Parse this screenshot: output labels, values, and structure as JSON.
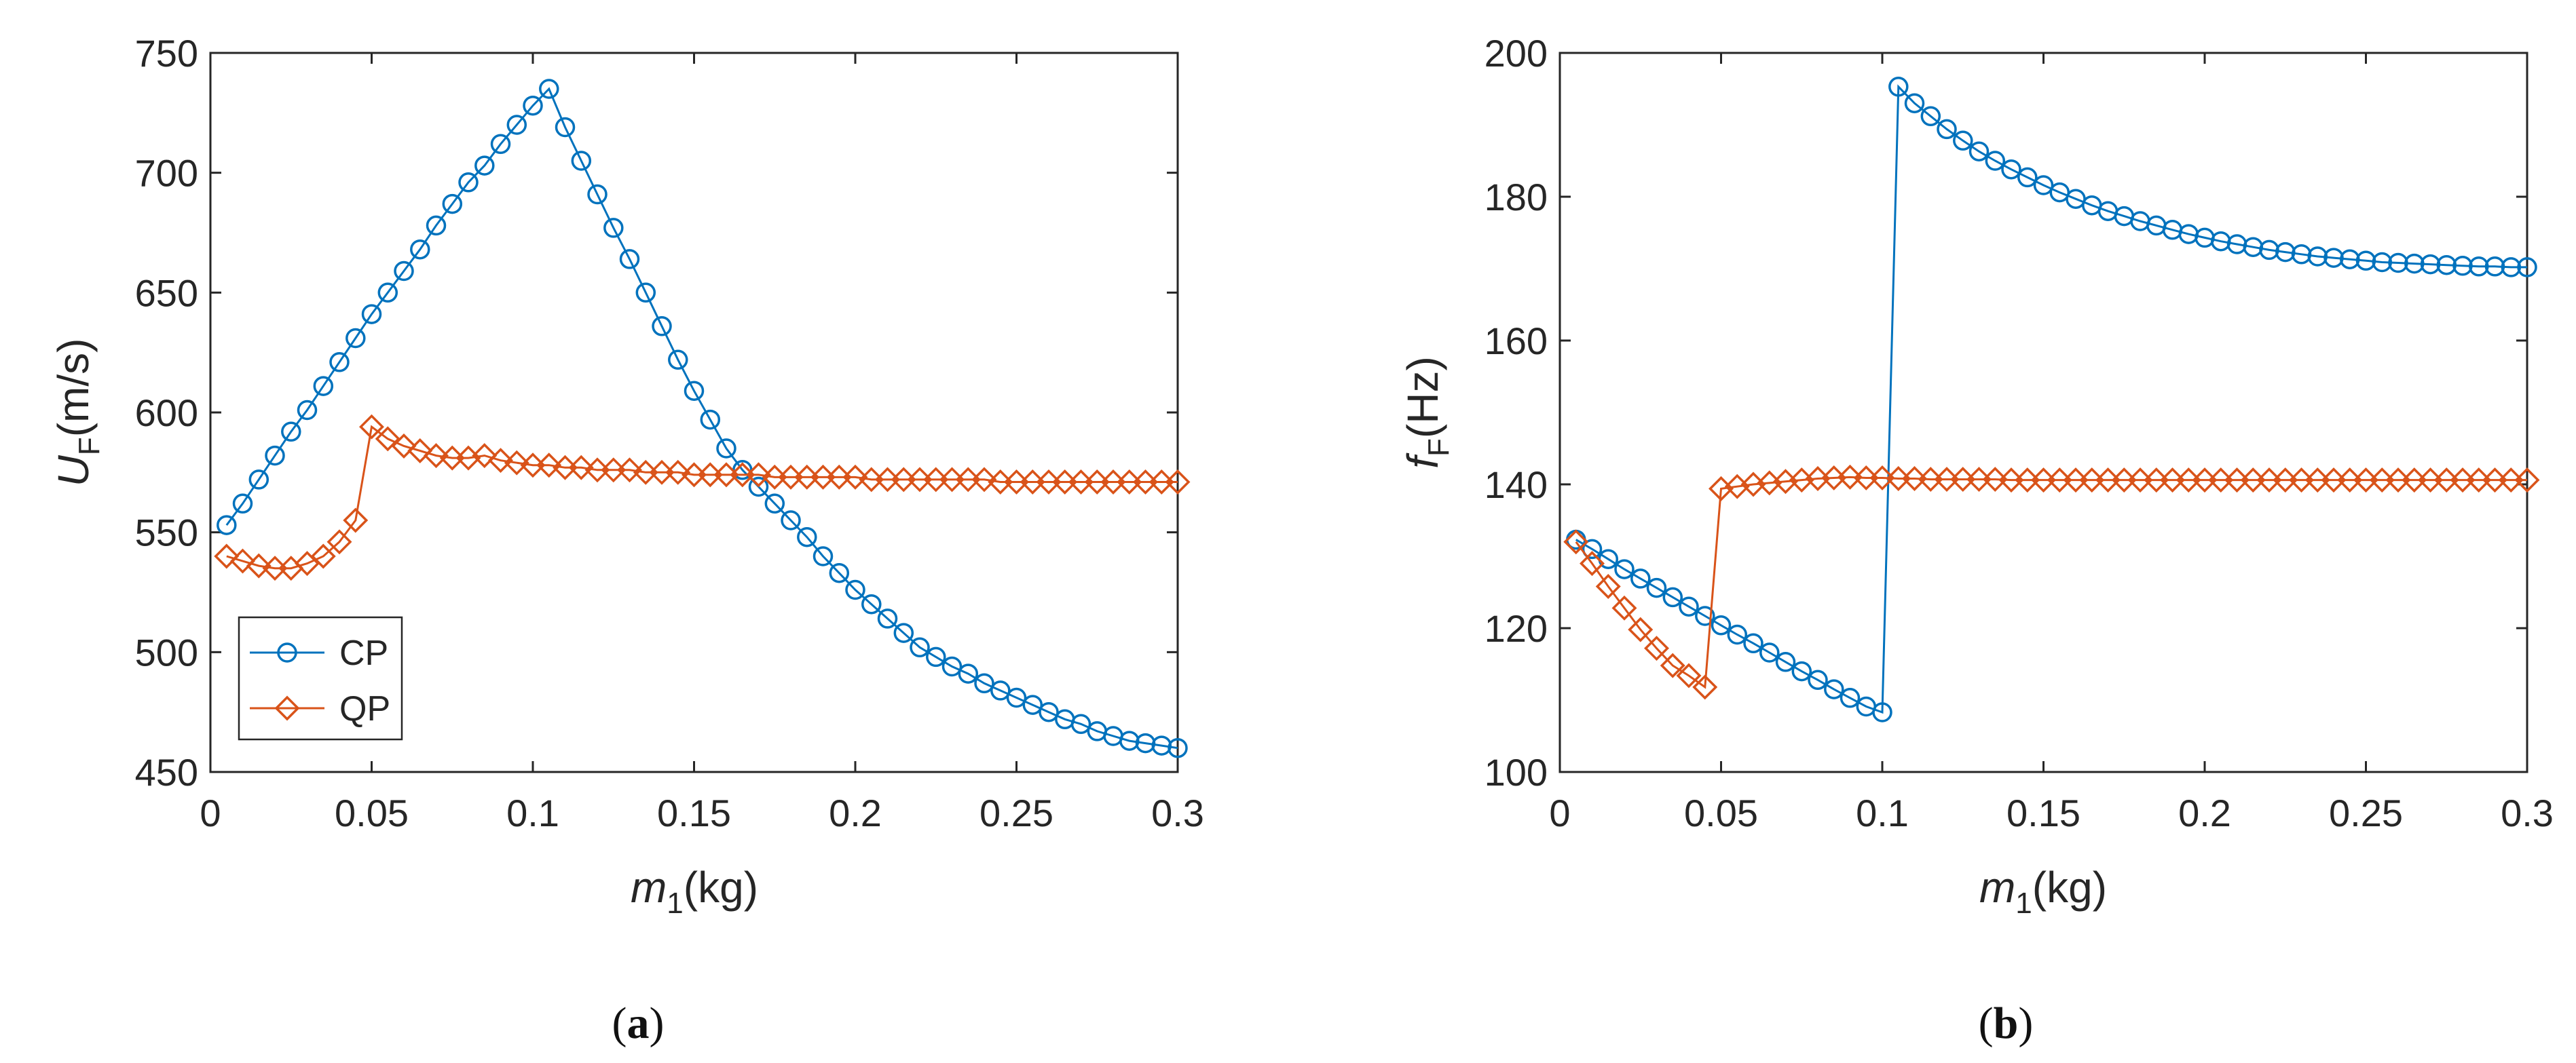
{
  "colors": {
    "cp": "#0072BD",
    "qp": "#D95319",
    "axis": "#262626"
  },
  "panels": [
    {
      "caption": {
        "open": "(",
        "letter": "a",
        "close": ")"
      },
      "ylabel": {
        "symbol": "U",
        "sub": "F",
        "unit": "(m/s)"
      },
      "xlabel": {
        "symbol": "m",
        "sub": "1",
        "unit": "(kg)"
      }
    },
    {
      "caption": {
        "open": "(",
        "letter": "b",
        "close": ")"
      },
      "ylabel": {
        "symbol": "f",
        "sub": "F",
        "unit": "(Hz)"
      },
      "xlabel": {
        "symbol": "m",
        "sub": "1",
        "unit": "(kg)"
      }
    }
  ],
  "legend": {
    "entries": [
      "CP",
      "QP"
    ]
  },
  "chart_data": [
    {
      "type": "line",
      "title": "(a)",
      "xlabel": "m1 (kg)",
      "ylabel": "UF (m/s)",
      "xlim": [
        0,
        0.3
      ],
      "ylim": [
        450,
        750
      ],
      "xticks": [
        0,
        0.05,
        0.1,
        0.15,
        0.2,
        0.25,
        0.3
      ],
      "xtick_labels": [
        "0",
        "0.05",
        "0.1",
        "0.15",
        "0.2",
        "0.25",
        "0.3"
      ],
      "yticks": [
        450,
        500,
        550,
        600,
        650,
        700,
        750
      ],
      "ytick_labels": [
        "450",
        "500",
        "550",
        "600",
        "650",
        "700",
        "750"
      ],
      "legend": "bottom-left",
      "series": [
        {
          "name": "CP",
          "marker": "circle",
          "x": [
            0.005,
            0.01,
            0.015,
            0.02,
            0.025,
            0.03,
            0.035,
            0.04,
            0.045,
            0.05,
            0.055,
            0.06,
            0.065,
            0.07,
            0.075,
            0.08,
            0.085,
            0.09,
            0.095,
            0.1,
            0.105,
            0.11,
            0.115,
            0.12,
            0.125,
            0.13,
            0.135,
            0.14,
            0.145,
            0.15,
            0.155,
            0.16,
            0.165,
            0.17,
            0.175,
            0.18,
            0.185,
            0.19,
            0.195,
            0.2,
            0.205,
            0.21,
            0.215,
            0.22,
            0.225,
            0.23,
            0.235,
            0.24,
            0.245,
            0.25,
            0.255,
            0.26,
            0.265,
            0.27,
            0.275,
            0.28,
            0.285,
            0.29,
            0.295,
            0.3
          ],
          "y": [
            553,
            562,
            572,
            582,
            592,
            601,
            611,
            621,
            631,
            641,
            650,
            659,
            668,
            678,
            687,
            696,
            703,
            712,
            720,
            728,
            735,
            719,
            705,
            691,
            677,
            664,
            650,
            636,
            622,
            609,
            597,
            585,
            576,
            569,
            562,
            555,
            548,
            540,
            533,
            526,
            520,
            514,
            508,
            502,
            498,
            494,
            491,
            487,
            484,
            481,
            478,
            475,
            472,
            470,
            467,
            465,
            463,
            462,
            461,
            460
          ]
        },
        {
          "name": "QP",
          "marker": "diamond",
          "x": [
            0.005,
            0.01,
            0.015,
            0.02,
            0.025,
            0.03,
            0.035,
            0.04,
            0.045,
            0.05,
            0.055,
            0.06,
            0.065,
            0.07,
            0.075,
            0.08,
            0.085,
            0.09,
            0.095,
            0.1,
            0.105,
            0.11,
            0.115,
            0.12,
            0.125,
            0.13,
            0.135,
            0.14,
            0.145,
            0.15,
            0.155,
            0.16,
            0.165,
            0.17,
            0.175,
            0.18,
            0.185,
            0.19,
            0.195,
            0.2,
            0.205,
            0.21,
            0.215,
            0.22,
            0.225,
            0.23,
            0.235,
            0.24,
            0.245,
            0.25,
            0.255,
            0.26,
            0.265,
            0.27,
            0.275,
            0.28,
            0.285,
            0.29,
            0.295,
            0.3
          ],
          "y": [
            540,
            538,
            536,
            535,
            535,
            537,
            540,
            546,
            555,
            594,
            589,
            586,
            584,
            582,
            581,
            581,
            582,
            580,
            579,
            578,
            578,
            577,
            577,
            576,
            576,
            576,
            575,
            575,
            575,
            574,
            574,
            574,
            574,
            574,
            573,
            573,
            573,
            573,
            573,
            573,
            572,
            572,
            572,
            572,
            572,
            572,
            572,
            572,
            571,
            571,
            571,
            571,
            571,
            571,
            571,
            571,
            571,
            571,
            571,
            571
          ]
        }
      ]
    },
    {
      "type": "line",
      "title": "(b)",
      "xlabel": "m1 (kg)",
      "ylabel": "fF (Hz)",
      "xlim": [
        0,
        0.3
      ],
      "ylim": [
        100,
        200
      ],
      "xticks": [
        0,
        0.05,
        0.1,
        0.15,
        0.2,
        0.25,
        0.3
      ],
      "xtick_labels": [
        "0",
        "0.05",
        "0.1",
        "0.15",
        "0.2",
        "0.25",
        "0.3"
      ],
      "yticks": [
        100,
        120,
        140,
        160,
        180,
        200
      ],
      "ytick_labels": [
        "100",
        "120",
        "140",
        "160",
        "180",
        "200"
      ],
      "legend": "none",
      "series": [
        {
          "name": "CP",
          "marker": "circle",
          "x": [
            0.005,
            0.01,
            0.015,
            0.02,
            0.025,
            0.03,
            0.035,
            0.04,
            0.045,
            0.05,
            0.055,
            0.06,
            0.065,
            0.07,
            0.075,
            0.08,
            0.085,
            0.09,
            0.095,
            0.1,
            0.105,
            0.11,
            0.115,
            0.12,
            0.125,
            0.13,
            0.135,
            0.14,
            0.145,
            0.15,
            0.155,
            0.16,
            0.165,
            0.17,
            0.175,
            0.18,
            0.185,
            0.19,
            0.195,
            0.2,
            0.205,
            0.21,
            0.215,
            0.22,
            0.225,
            0.23,
            0.235,
            0.24,
            0.245,
            0.25,
            0.255,
            0.26,
            0.265,
            0.27,
            0.275,
            0.28,
            0.285,
            0.29,
            0.295,
            0.3
          ],
          "y": [
            132.3,
            131.0,
            129.6,
            128.2,
            126.9,
            125.6,
            124.3,
            123.0,
            121.7,
            120.4,
            119.1,
            117.9,
            116.6,
            115.3,
            114.0,
            112.8,
            111.5,
            110.3,
            109.1,
            108.3,
            195.3,
            193.0,
            191.2,
            189.4,
            187.8,
            186.3,
            185.0,
            183.8,
            182.7,
            181.6,
            180.6,
            179.7,
            178.8,
            178.0,
            177.3,
            176.6,
            176.0,
            175.4,
            174.8,
            174.3,
            173.8,
            173.4,
            173.0,
            172.6,
            172.3,
            172.0,
            171.7,
            171.5,
            171.3,
            171.1,
            170.9,
            170.8,
            170.7,
            170.6,
            170.5,
            170.4,
            170.3,
            170.3,
            170.2,
            170.2
          ]
        },
        {
          "name": "QP",
          "marker": "diamond",
          "x": [
            0.005,
            0.01,
            0.015,
            0.02,
            0.025,
            0.03,
            0.035,
            0.04,
            0.045,
            0.05,
            0.055,
            0.06,
            0.065,
            0.07,
            0.075,
            0.08,
            0.085,
            0.09,
            0.095,
            0.1,
            0.105,
            0.11,
            0.115,
            0.12,
            0.125,
            0.13,
            0.135,
            0.14,
            0.145,
            0.15,
            0.155,
            0.16,
            0.165,
            0.17,
            0.175,
            0.18,
            0.185,
            0.19,
            0.195,
            0.2,
            0.205,
            0.21,
            0.215,
            0.22,
            0.225,
            0.23,
            0.235,
            0.24,
            0.245,
            0.25,
            0.255,
            0.26,
            0.265,
            0.27,
            0.275,
            0.28,
            0.285,
            0.29,
            0.295,
            0.3
          ],
          "y": [
            132.0,
            129.0,
            125.8,
            122.8,
            119.8,
            117.2,
            114.8,
            113.4,
            111.8,
            139.4,
            139.7,
            140.0,
            140.2,
            140.4,
            140.6,
            140.8,
            140.9,
            141.0,
            140.9,
            140.9,
            140.8,
            140.8,
            140.7,
            140.7,
            140.7,
            140.7,
            140.7,
            140.6,
            140.6,
            140.6,
            140.6,
            140.6,
            140.6,
            140.6,
            140.6,
            140.6,
            140.6,
            140.6,
            140.6,
            140.6,
            140.6,
            140.6,
            140.6,
            140.6,
            140.6,
            140.6,
            140.6,
            140.6,
            140.6,
            140.6,
            140.6,
            140.6,
            140.6,
            140.6,
            140.6,
            140.6,
            140.6,
            140.6,
            140.6,
            140.6
          ]
        }
      ]
    }
  ]
}
